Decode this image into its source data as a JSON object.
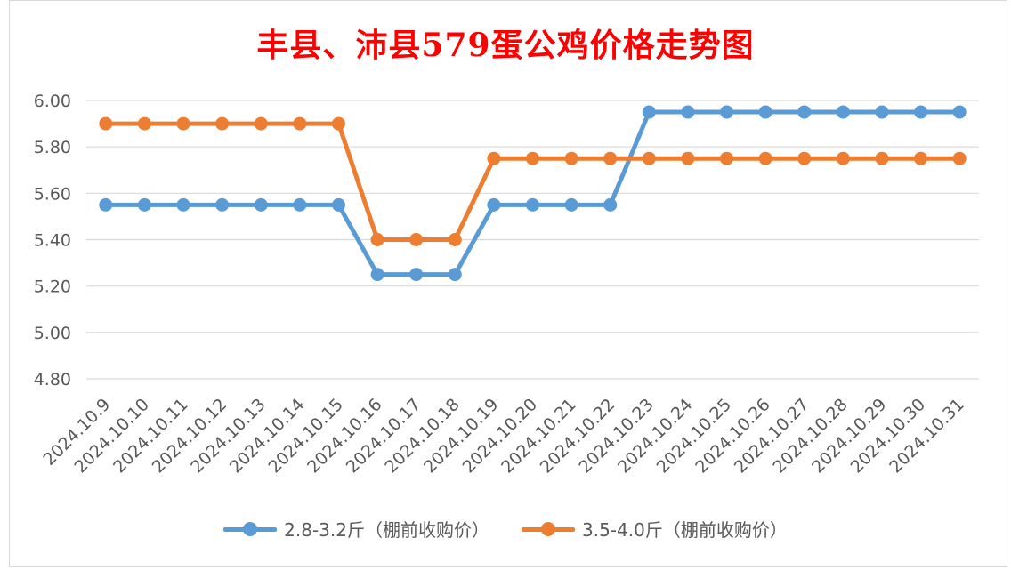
{
  "title": "丰县、沛县579蛋公鸡价格走势图",
  "chart_data": {
    "type": "line",
    "title": "丰县、沛县579蛋公鸡价格走势图",
    "categories": [
      "2024.10.9",
      "2024.10.10",
      "2024.10.11",
      "2024.10.12",
      "2024.10.13",
      "2024.10.14",
      "2024.10.15",
      "2024.10.16",
      "2024.10.17",
      "2024.10.18",
      "2024.10.19",
      "2024.10.20",
      "2024.10.21",
      "2024.10.22",
      "2024.10.23",
      "2024.10.24",
      "2024.10.25",
      "2024.10.26",
      "2024.10.27",
      "2024.10.28",
      "2024.10.29",
      "2024.10.30",
      "2024.10.31"
    ],
    "series": [
      {
        "name": "2.8-3.2斤（棚前收购价）",
        "color": "#5b9bd5",
        "values": [
          5.55,
          5.55,
          5.55,
          5.55,
          5.55,
          5.55,
          5.55,
          5.25,
          5.25,
          5.25,
          5.55,
          5.55,
          5.55,
          5.55,
          5.95,
          5.95,
          5.95,
          5.95,
          5.95,
          5.95,
          5.95,
          5.95,
          5.95
        ]
      },
      {
        "name": "3.5-4.0斤（棚前收购价）",
        "color": "#ed7d31",
        "values": [
          5.9,
          5.9,
          5.9,
          5.9,
          5.9,
          5.9,
          5.9,
          5.4,
          5.4,
          5.4,
          5.75,
          5.75,
          5.75,
          5.75,
          5.75,
          5.75,
          5.75,
          5.75,
          5.75,
          5.75,
          5.75,
          5.75,
          5.75
        ]
      }
    ],
    "ylim": [
      4.8,
      6.0
    ],
    "yticks": [
      "6.00",
      "5.80",
      "5.60",
      "5.40",
      "5.20",
      "5.00",
      "4.80"
    ],
    "grid": true,
    "legend_position": "bottom"
  }
}
